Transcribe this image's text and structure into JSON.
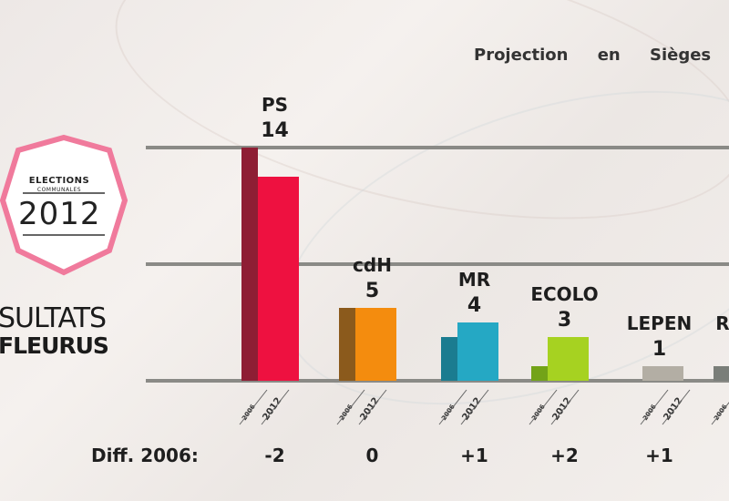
{
  "header": {
    "title": "Projection en Sièges"
  },
  "badge": {
    "line1": "ELECTIONS",
    "line2": "COMMUNALES",
    "year": "2012",
    "ring_color": "#f07a9c"
  },
  "labels": {
    "resultats": "ÉSULTATS",
    "commune": "FLEURUS",
    "diff_label": "Diff. 2006:"
  },
  "chart_data": {
    "type": "bar",
    "title": "Projection en Sièges",
    "categories": [
      "PS",
      "cdH",
      "MR",
      "ECOLO",
      "LEPEN",
      "RO"
    ],
    "series": [
      {
        "name": "2006",
        "values": [
          16,
          5,
          3,
          1,
          0,
          0
        ]
      },
      {
        "name": "2012",
        "values": [
          14,
          5,
          4,
          3,
          1,
          1
        ]
      }
    ],
    "value_labels": [
      "14",
      "5",
      "4",
      "3",
      "1",
      ""
    ],
    "tick_labels": [
      "2006",
      "2012"
    ],
    "diff_2006": [
      "-2",
      "0",
      "+1",
      "+2",
      "+1",
      ""
    ],
    "colors_2006": [
      "#8e1e34",
      "#8b5a1c",
      "#1b7c90",
      "#73a318",
      "#b3aea4",
      "#7a7e79"
    ],
    "colors_2012": [
      "#ee1140",
      "#f48c0e",
      "#25a8c4",
      "#a6d221",
      "#b3aea4",
      "#7a7e79"
    ],
    "ylim": [
      0,
      16
    ],
    "grid": true
  }
}
